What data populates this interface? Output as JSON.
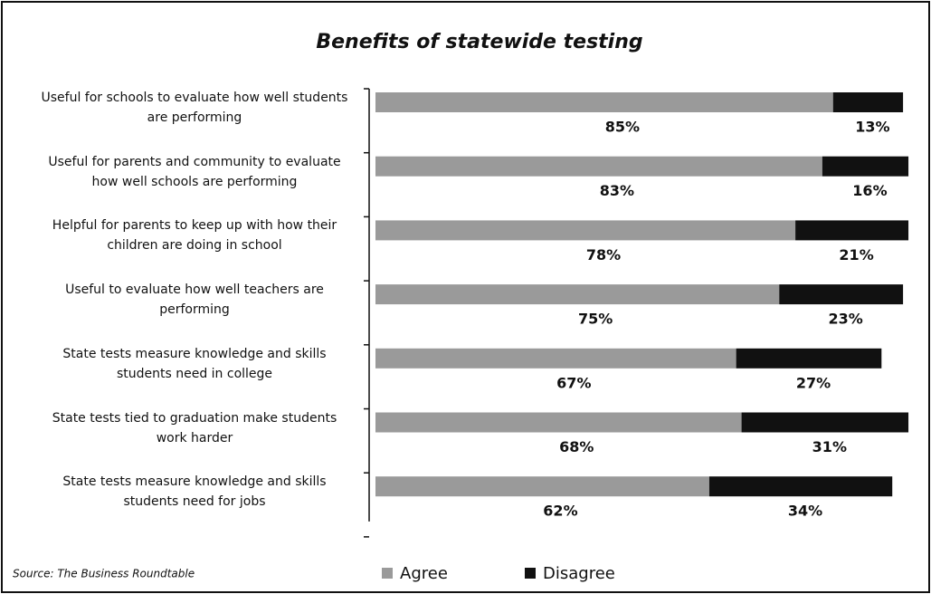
{
  "chart_data": {
    "type": "stacked-barh",
    "title": "Benefits of statewide testing",
    "categories": [
      "Useful for schools to evaluate how well students are performing",
      "Useful for parents and community to evaluate how well schools are performing",
      "Helpful for parents to keep up with how their children are doing in school",
      "Useful to evaluate how well teachers are performing",
      "State tests measure knowledge and skills students need in college",
      "State tests tied to graduation make students work harder",
      "State tests measure knowledge and skills students need for jobs"
    ],
    "series": [
      {
        "name": "Agree",
        "color": "#9a9a9a",
        "values": [
          85,
          83,
          78,
          75,
          67,
          68,
          62
        ],
        "value_labels": [
          "85%",
          "83%",
          "78%",
          "75%",
          "67%",
          "68%",
          "62%"
        ]
      },
      {
        "name": "Disagree",
        "color": "#111111",
        "values": [
          13,
          16,
          21,
          23,
          27,
          31,
          34
        ],
        "value_labels": [
          "13%",
          "16%",
          "21%",
          "23%",
          "27%",
          "31%",
          "34%"
        ]
      }
    ],
    "source": "Source: The Business Roundtable"
  }
}
